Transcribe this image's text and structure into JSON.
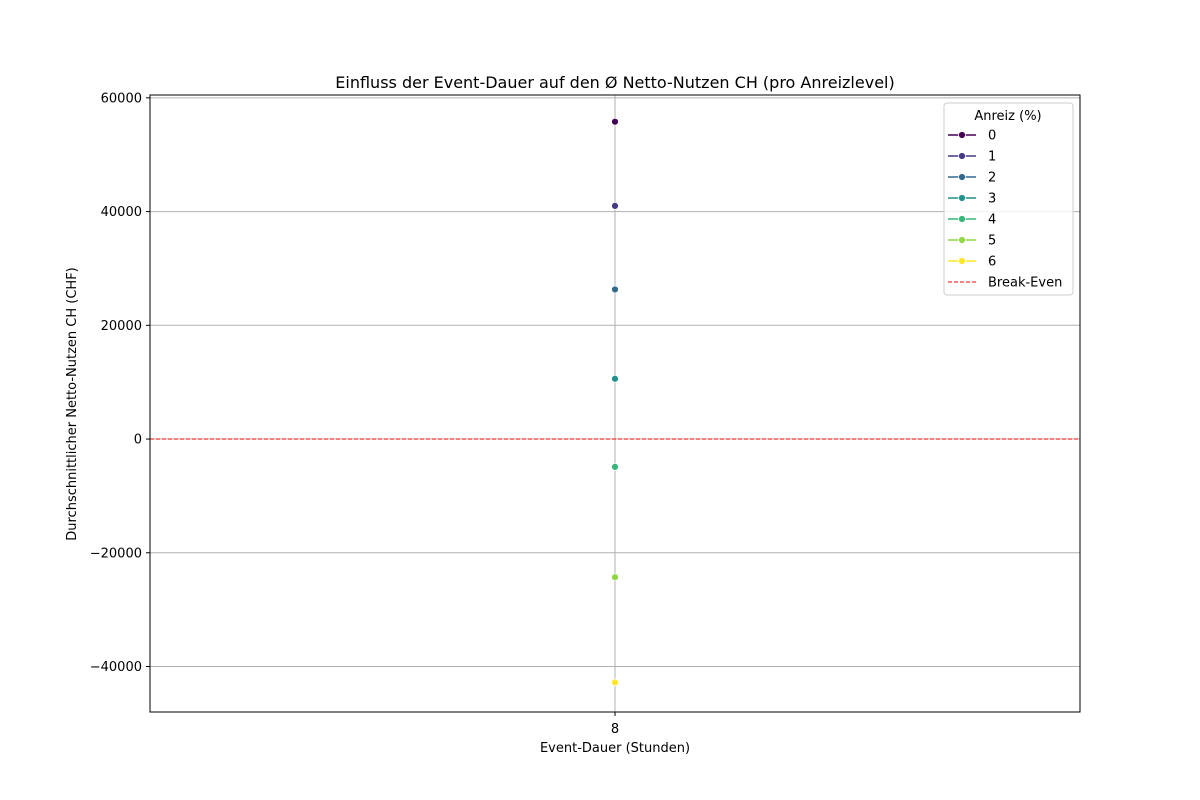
{
  "chart_data": {
    "type": "scatter",
    "title": "Einfluss der Event-Dauer auf den Ø Netto-Nutzen CH (pro Anreizlevel)",
    "xlabel": "Event-Dauer (Stunden)",
    "ylabel": "Durchschnittlicher Netto-Nutzen CH (CHF)",
    "x_categories": [
      "8"
    ],
    "ylim": [
      -48000,
      60500
    ],
    "yticks": [
      60000,
      40000,
      20000,
      0,
      -20000,
      -40000
    ],
    "ytick_labels": [
      "60000",
      "40000",
      "20000",
      "0",
      "−20000",
      "−40000"
    ],
    "grid": true,
    "legend": {
      "title": "Anreiz (%)",
      "placement": "top-right",
      "break_even_label": "Break-Even"
    },
    "series": [
      {
        "name": "0",
        "color": "#440154",
        "x": [
          "8"
        ],
        "values": [
          55800
        ]
      },
      {
        "name": "1",
        "color": "#443983",
        "x": [
          "8"
        ],
        "values": [
          41000
        ]
      },
      {
        "name": "2",
        "color": "#31688e",
        "x": [
          "8"
        ],
        "values": [
          26300
        ]
      },
      {
        "name": "3",
        "color": "#21918c",
        "x": [
          "8"
        ],
        "values": [
          10600
        ]
      },
      {
        "name": "4",
        "color": "#35b779",
        "x": [
          "8"
        ],
        "values": [
          -4900
        ]
      },
      {
        "name": "5",
        "color": "#90d743",
        "x": [
          "8"
        ],
        "values": [
          -24300
        ]
      },
      {
        "name": "6",
        "color": "#fde725",
        "x": [
          "8"
        ],
        "values": [
          -42800
        ]
      }
    ],
    "break_even": {
      "y": 0,
      "color": "#ff0000"
    }
  }
}
